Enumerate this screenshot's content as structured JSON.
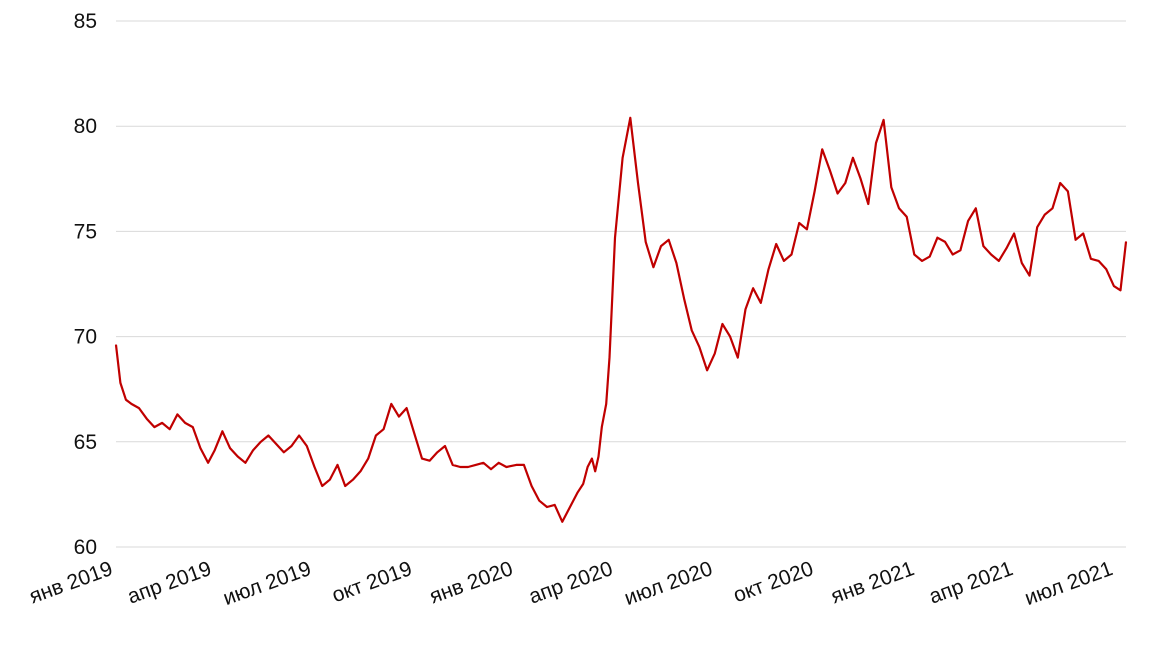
{
  "chart_data": {
    "type": "line",
    "title": "",
    "xlabel": "",
    "ylabel": "",
    "ylim": [
      60,
      85
    ],
    "grid": "horizontal",
    "legend": "none",
    "line_color": "#c00000",
    "yticks": [
      60,
      65,
      70,
      75,
      80,
      85
    ],
    "xticks": [
      {
        "date": "2019-01-01",
        "label": "янв 2019"
      },
      {
        "date": "2019-04-01",
        "label": "апр 2019"
      },
      {
        "date": "2019-07-01",
        "label": "июл 2019"
      },
      {
        "date": "2019-10-01",
        "label": "окт 2019"
      },
      {
        "date": "2020-01-01",
        "label": "янв 2020"
      },
      {
        "date": "2020-04-01",
        "label": "апр 2020"
      },
      {
        "date": "2020-07-01",
        "label": "июл 2020"
      },
      {
        "date": "2020-10-01",
        "label": "окт 2020"
      },
      {
        "date": "2021-01-01",
        "label": "янв 2021"
      },
      {
        "date": "2021-04-01",
        "label": "апр 2021"
      },
      {
        "date": "2021-07-01",
        "label": "июл 2021"
      }
    ],
    "series": [
      {
        "x": [
          "2019-01-01",
          "2019-01-05",
          "2019-01-10",
          "2019-01-15",
          "2019-01-22",
          "2019-01-29",
          "2019-02-05",
          "2019-02-12",
          "2019-02-19",
          "2019-02-26",
          "2019-03-05",
          "2019-03-12",
          "2019-03-19",
          "2019-03-26",
          "2019-04-01",
          "2019-04-08",
          "2019-04-15",
          "2019-04-22",
          "2019-04-29",
          "2019-05-06",
          "2019-05-13",
          "2019-05-20",
          "2019-05-27",
          "2019-06-03",
          "2019-06-10",
          "2019-06-17",
          "2019-06-24",
          "2019-07-01",
          "2019-07-08",
          "2019-07-15",
          "2019-07-22",
          "2019-07-29",
          "2019-08-05",
          "2019-08-12",
          "2019-08-19",
          "2019-08-26",
          "2019-09-02",
          "2019-09-09",
          "2019-09-16",
          "2019-09-23",
          "2019-09-30",
          "2019-10-07",
          "2019-10-14",
          "2019-10-21",
          "2019-10-28",
          "2019-11-04",
          "2019-11-11",
          "2019-11-18",
          "2019-11-25",
          "2019-12-02",
          "2019-12-09",
          "2019-12-16",
          "2019-12-23",
          "2020-01-01",
          "2020-01-08",
          "2020-01-15",
          "2020-01-22",
          "2020-01-29",
          "2020-02-05",
          "2020-02-12",
          "2020-02-19",
          "2020-02-26",
          "2020-03-02",
          "2020-03-06",
          "2020-03-10",
          "2020-03-13",
          "2020-03-16",
          "2020-03-19",
          "2020-03-23",
          "2020-03-26",
          "2020-03-31",
          "2020-04-07",
          "2020-04-14",
          "2020-04-21",
          "2020-04-28",
          "2020-05-05",
          "2020-05-12",
          "2020-05-19",
          "2020-05-26",
          "2020-06-02",
          "2020-06-09",
          "2020-06-16",
          "2020-06-23",
          "2020-06-30",
          "2020-07-07",
          "2020-07-14",
          "2020-07-21",
          "2020-07-28",
          "2020-08-04",
          "2020-08-11",
          "2020-08-18",
          "2020-08-25",
          "2020-09-01",
          "2020-09-08",
          "2020-09-15",
          "2020-09-22",
          "2020-09-29",
          "2020-10-06",
          "2020-10-13",
          "2020-10-20",
          "2020-10-27",
          "2020-11-03",
          "2020-11-10",
          "2020-11-17",
          "2020-11-24",
          "2020-12-01",
          "2020-12-08",
          "2020-12-15",
          "2020-12-22",
          "2020-12-29",
          "2021-01-05",
          "2021-01-12",
          "2021-01-19",
          "2021-01-26",
          "2021-02-02",
          "2021-02-09",
          "2021-02-16",
          "2021-02-23",
          "2021-03-02",
          "2021-03-09",
          "2021-03-16",
          "2021-03-23",
          "2021-03-30",
          "2021-04-06",
          "2021-04-13",
          "2021-04-20",
          "2021-04-27",
          "2021-05-04",
          "2021-05-11",
          "2021-05-18",
          "2021-05-25",
          "2021-06-01",
          "2021-06-08",
          "2021-06-15",
          "2021-06-22",
          "2021-06-29",
          "2021-07-05",
          "2021-07-10"
        ],
        "values": [
          69.6,
          67.8,
          67.0,
          66.8,
          66.6,
          66.1,
          65.7,
          65.9,
          65.6,
          66.3,
          65.9,
          65.7,
          64.7,
          64.0,
          64.6,
          65.5,
          64.7,
          64.3,
          64.0,
          64.6,
          65.0,
          65.3,
          64.9,
          64.5,
          64.8,
          65.3,
          64.8,
          63.8,
          62.9,
          63.2,
          63.9,
          62.9,
          63.2,
          63.6,
          64.2,
          65.3,
          65.6,
          66.8,
          66.2,
          66.6,
          65.4,
          64.2,
          64.1,
          64.5,
          64.8,
          63.9,
          63.8,
          63.8,
          63.9,
          64.0,
          63.7,
          64.0,
          63.8,
          63.9,
          63.9,
          62.9,
          62.2,
          61.9,
          62.0,
          61.2,
          61.9,
          62.6,
          63.0,
          63.8,
          64.2,
          63.6,
          64.3,
          65.7,
          66.8,
          69.0,
          74.7,
          78.5,
          80.4,
          77.3,
          74.5,
          73.3,
          74.3,
          74.6,
          73.5,
          71.8,
          70.3,
          69.5,
          68.4,
          69.2,
          70.6,
          70.0,
          69.0,
          71.3,
          72.3,
          71.6,
          73.2,
          74.4,
          73.6,
          73.9,
          75.4,
          75.1,
          76.9,
          78.9,
          77.9,
          76.8,
          77.3,
          78.5,
          77.5,
          76.3,
          79.2,
          80.3,
          77.1,
          76.1,
          75.7,
          73.9,
          73.6,
          73.8,
          74.7,
          74.5,
          73.9,
          74.1,
          75.5,
          76.1,
          74.3,
          73.9,
          73.6,
          74.2,
          74.9,
          73.5,
          72.9,
          75.2,
          75.8,
          76.1,
          77.3,
          76.9,
          74.6,
          74.9,
          73.7,
          73.6,
          73.2,
          72.4,
          72.2,
          74.5
        ]
      }
    ]
  }
}
